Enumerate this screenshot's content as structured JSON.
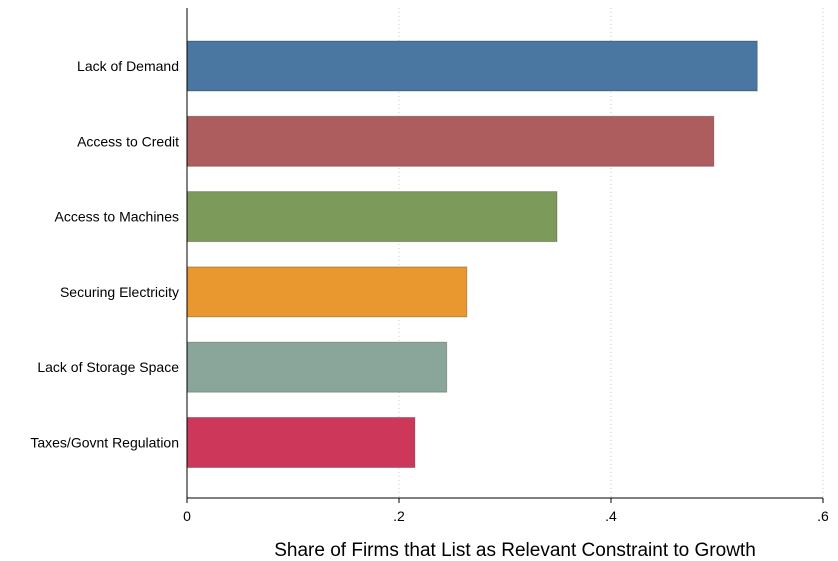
{
  "chart_data": {
    "type": "bar",
    "orientation": "horizontal",
    "title": "",
    "xlabel": "Share of Firms that List as Relevant Constraint to Growth",
    "ylabel": "",
    "xlim": [
      0,
      0.6
    ],
    "xticks": [
      0,
      0.2,
      0.4,
      0.6
    ],
    "xtick_labels": [
      "0",
      ".2",
      ".4",
      ".6"
    ],
    "grid": "vertical dotted",
    "categories": [
      "Lack of Demand",
      "Access to Credit",
      "Access to Machines",
      "Securing Electricity",
      "Lack of Storage Space",
      "Taxes/Govnt Regulation"
    ],
    "values": [
      0.538,
      0.497,
      0.349,
      0.264,
      0.245,
      0.215
    ],
    "colors": [
      "#4a77a2",
      "#ad5d5e",
      "#7c9b5a",
      "#e8982f",
      "#8aa69b",
      "#cd385a"
    ]
  }
}
